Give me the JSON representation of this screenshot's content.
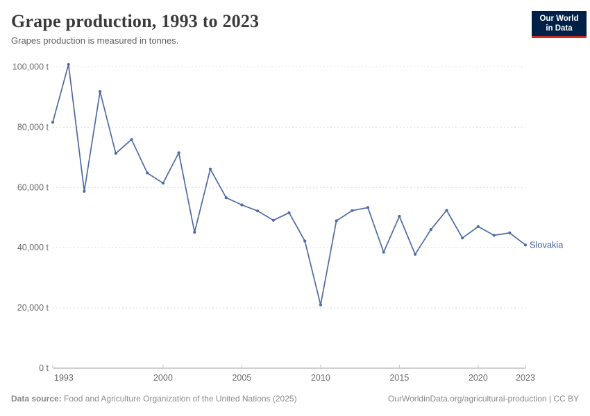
{
  "header": {
    "title": "Grape production, 1993 to 2023",
    "subtitle": "Grapes production is measured in tonnes.",
    "logo": {
      "line1": "Our World",
      "line2": "in Data"
    }
  },
  "footer": {
    "datasource_label": "Data source:",
    "datasource_text": " Food and Agriculture Organization of the United Nations (2025)",
    "link_text": "OurWorldinData.org/agricultural-production | CC BY"
  },
  "colors": {
    "line": "#4d6aa2",
    "end_label": "#3f5e99",
    "grid": "#dadada",
    "axis": "#a1a1a1",
    "tick": "#c4c4c4",
    "logo_bg": "#002147",
    "logo_stripe": "#cf2b28"
  },
  "chart_data": {
    "type": "line",
    "title": "Grape production, 1993 to 2023",
    "xlabel": "",
    "ylabel": "",
    "unit": "t",
    "grid": true,
    "legend_position": "end-of-line",
    "xlim": [
      1993,
      2023
    ],
    "ylim": [
      0,
      100000
    ],
    "x": [
      1993,
      1994,
      1995,
      1996,
      1997,
      1998,
      1999,
      2000,
      2001,
      2002,
      2003,
      2004,
      2005,
      2006,
      2007,
      2008,
      2009,
      2010,
      2011,
      2012,
      2013,
      2014,
      2015,
      2016,
      2017,
      2018,
      2019,
      2020,
      2021,
      2022,
      2023
    ],
    "series": [
      {
        "name": "Slovakia",
        "values": [
          81600,
          100800,
          58700,
          91800,
          71300,
          75900,
          64800,
          61400,
          71500,
          45100,
          66100,
          56600,
          54200,
          52200,
          49100,
          51600,
          42200,
          21000,
          48900,
          52300,
          53300,
          38500,
          50400,
          37800,
          46000,
          52400,
          43200,
          47000,
          44100,
          44900,
          40900
        ]
      }
    ],
    "y_ticks": [
      {
        "value": 0,
        "label": "0 t"
      },
      {
        "value": 20000,
        "label": "20,000 t"
      },
      {
        "value": 40000,
        "label": "40,000 t"
      },
      {
        "value": 60000,
        "label": "60,000 t"
      },
      {
        "value": 80000,
        "label": "80,000 t"
      },
      {
        "value": 100000,
        "label": "100,000 t"
      }
    ],
    "x_ticks": [
      {
        "value": 1993,
        "label": "1993"
      },
      {
        "value": 2000,
        "label": "2000"
      },
      {
        "value": 2005,
        "label": "2005"
      },
      {
        "value": 2010,
        "label": "2010"
      },
      {
        "value": 2015,
        "label": "2015"
      },
      {
        "value": 2020,
        "label": "2020"
      },
      {
        "value": 2023,
        "label": "2023"
      }
    ]
  }
}
